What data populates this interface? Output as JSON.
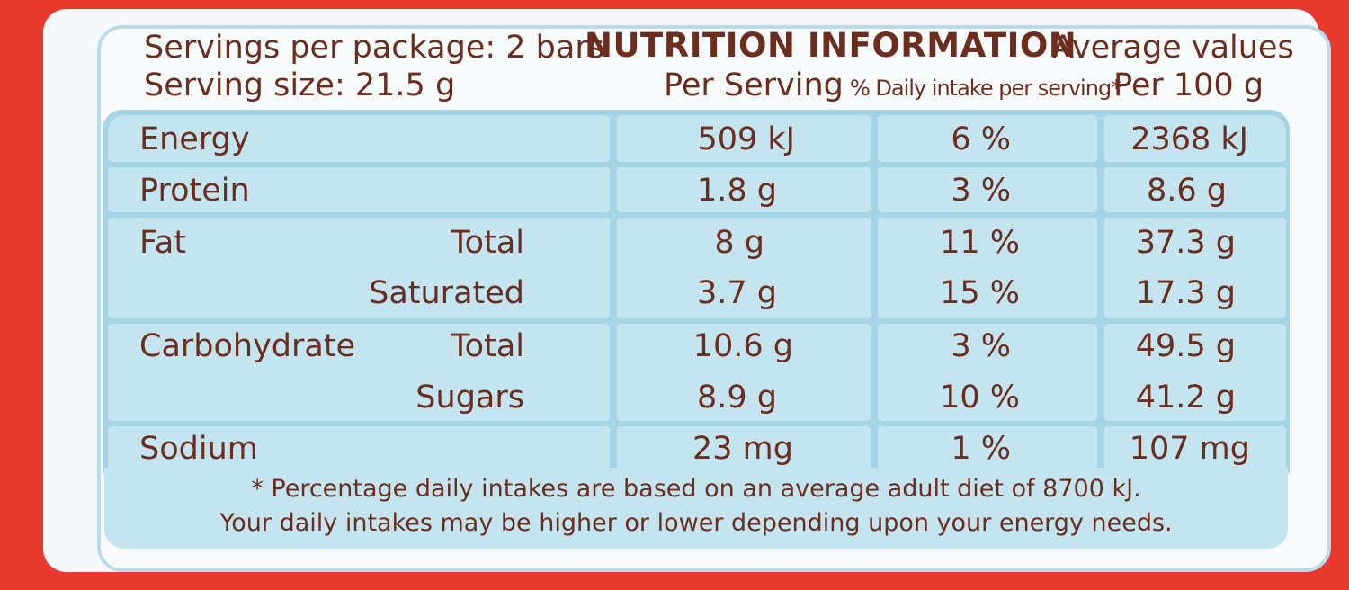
{
  "header": {
    "servings_per_package": "Servings per package: 2 bars",
    "serving_size": "Serving size: 21.5 g",
    "title": "NUTRITION INFORMATION",
    "average_values": "Average values",
    "col_per_serving": "Per Serving",
    "col_daily_intake": "% Daily intake per serving*",
    "col_per_100g": "Per 100 g"
  },
  "rows": [
    {
      "name": "Energy",
      "sub": "",
      "per_serving": "509 kJ",
      "daily": "6 %",
      "per_100g": "2368 kJ"
    },
    {
      "name": "Protein",
      "sub": "",
      "per_serving": "1.8 g",
      "daily": "3 %",
      "per_100g": "8.6 g"
    },
    {
      "name": "Fat",
      "sub": "Total",
      "per_serving": "8 g",
      "daily": "11 %",
      "per_100g": "37.3 g"
    },
    {
      "name": "",
      "sub": "Saturated",
      "per_serving": "3.7 g",
      "daily": "15 %",
      "per_100g": "17.3 g"
    },
    {
      "name": "Carbohydrate",
      "sub": "Total",
      "per_serving": "10.6 g",
      "daily": "3 %",
      "per_100g": "49.5 g"
    },
    {
      "name": "",
      "sub": "Sugars",
      "per_serving": "8.9 g",
      "daily": "10 %",
      "per_100g": "41.2 g"
    },
    {
      "name": "Sodium",
      "sub": "",
      "per_serving": "23 mg",
      "daily": "1 %",
      "per_100g": "107 mg"
    }
  ],
  "footnote": {
    "line1": "* Percentage daily intakes are based on an average adult diet of 8700 kJ.",
    "line2": "Your daily intakes may be higher or lower depending upon your energy needs."
  },
  "colors": {
    "background": "#e8392e",
    "panel": "#f6f9fb",
    "table_border": "#a5d4e4",
    "cell_fill": "#c4e4ef",
    "text": "#6b2e1e"
  }
}
